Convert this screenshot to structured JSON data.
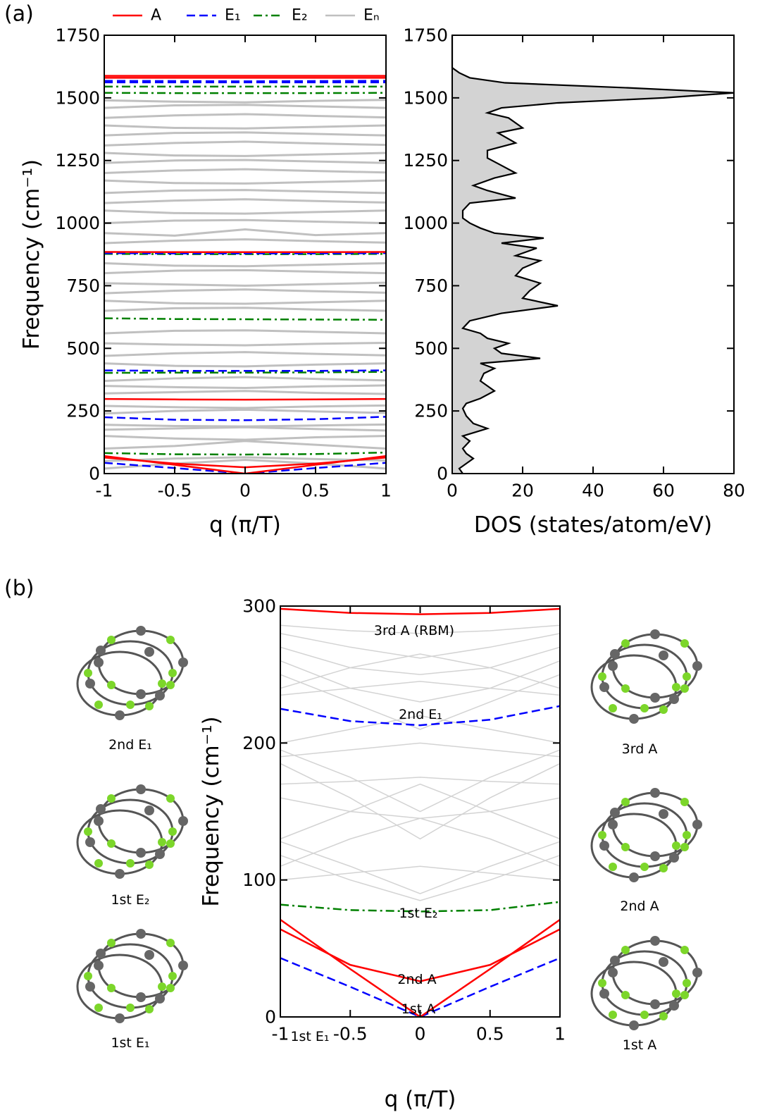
{
  "panel_labels": [
    "(a)",
    "(b)"
  ],
  "mode_images": [
    {
      "label": "2nd E₁",
      "color": "#0000ff"
    },
    {
      "label": "1st E₂",
      "color": "#008000"
    },
    {
      "label": "1st E₁",
      "color": "#0000ff"
    },
    {
      "label": "3rd A",
      "color": "#ff0000"
    },
    {
      "label": "2nd A",
      "color": "#ff0000"
    },
    {
      "label": "1st A",
      "color": "#ff0000"
    }
  ],
  "chart_data": [
    {
      "type": "dispersion",
      "xlabel": "q (π/T)",
      "ylabel": "Frequency (cm⁻¹)",
      "x": [
        -1,
        -0.5,
        0,
        0.5,
        1
      ],
      "xlim": [
        -1,
        1
      ],
      "xticks": [
        -1,
        -0.5,
        0,
        0.5,
        1
      ],
      "ylim": [
        0,
        1750
      ],
      "yticks": [
        0,
        250,
        500,
        750,
        1000,
        1250,
        1500,
        1750
      ],
      "legend": "top",
      "series": [
        {
          "name": "A",
          "color": "#ff0000",
          "dash": "solid",
          "branches": [
            [
              1588,
              1588,
              1588,
              1588,
              1588
            ],
            [
              1580,
              1580,
              1580,
              1580,
              1580
            ],
            [
              885,
              884,
              884,
              884,
              885
            ],
            [
              298,
              296,
              295,
              296,
              298
            ],
            [
              70,
              35,
              0,
              35,
              70
            ],
            [
              64,
              40,
              25,
              40,
              64
            ]
          ]
        },
        {
          "name": "E₁",
          "color": "#0000ff",
          "dash": "dashed",
          "branches": [
            [
              1568,
              1567,
              1566,
              1567,
              1568
            ],
            [
              1562,
              1562,
              1562,
              1562,
              1562
            ],
            [
              880,
              879,
              879,
              879,
              880
            ],
            [
              412,
              410,
              410,
              410,
              412
            ],
            [
              225,
              215,
              213,
              217,
              227
            ],
            [
              43,
              22,
              0,
              22,
              43
            ]
          ]
        },
        {
          "name": "E₂",
          "color": "#008000",
          "dash": "dashdot",
          "branches": [
            [
              1545,
              1545,
              1545,
              1545,
              1545
            ],
            [
              1520,
              1519,
              1519,
              1519,
              1520
            ],
            [
              877,
              876,
              876,
              876,
              877
            ],
            [
              620,
              617,
              616,
              615,
              614
            ],
            [
              402,
              403,
              403,
              404,
              406
            ],
            [
              82,
              77,
              76,
              78,
              84
            ]
          ]
        },
        {
          "name": "Eₙ",
          "color": "#c0c0c0",
          "dash": "solid",
          "branches": [
            [
              20,
              40,
              55,
              40,
              20
            ],
            [
              50,
              60,
              65,
              58,
              52
            ],
            [
              100,
              110,
              130,
              115,
              100
            ],
            [
              150,
              140,
              135,
              145,
              150
            ],
            [
              175,
              180,
              185,
              178,
              172
            ],
            [
              195,
              190,
              188,
              192,
              196
            ],
            [
              240,
              250,
              255,
              248,
              242
            ],
            [
              270,
              265,
              262,
              268,
              272
            ],
            [
              320,
              325,
              330,
              322,
              318
            ],
            [
              350,
              345,
              342,
              348,
              352
            ],
            [
              370,
              380,
              385,
              378,
              372
            ],
            [
              440,
              430,
              428,
              435,
              440
            ],
            [
              470,
              480,
              485,
              478,
              472
            ],
            [
              520,
              515,
              512,
              518,
              522
            ],
            [
              560,
              570,
              572,
              566,
              560
            ],
            [
              650,
              660,
              662,
              655,
              650
            ],
            [
              690,
              680,
              678,
              684,
              690
            ],
            [
              720,
              730,
              735,
              728,
              722
            ],
            [
              760,
              755,
              750,
              756,
              762
            ],
            [
              800,
              810,
              812,
              806,
              800
            ],
            [
              840,
              830,
              828,
              834,
              840
            ],
            [
              920,
              930,
              935,
              928,
              922
            ],
            [
              960,
              950,
              975,
              952,
              960
            ],
            [
              1000,
              1010,
              1012,
              1006,
              1000
            ],
            [
              1050,
              1040,
              1038,
              1044,
              1050
            ],
            [
              1080,
              1090,
              1095,
              1088,
              1082
            ],
            [
              1120,
              1130,
              1132,
              1126,
              1120
            ],
            [
              1170,
              1160,
              1158,
              1164,
              1170
            ],
            [
              1200,
              1210,
              1215,
              1208,
              1202
            ],
            [
              1240,
              1250,
              1252,
              1246,
              1240
            ],
            [
              1280,
              1270,
              1268,
              1274,
              1280
            ],
            [
              1310,
              1320,
              1325,
              1318,
              1312
            ],
            [
              1350,
              1360,
              1362,
              1356,
              1350
            ],
            [
              1390,
              1380,
              1378,
              1384,
              1390
            ],
            [
              1420,
              1430,
              1435,
              1428,
              1422
            ],
            [
              1460,
              1470,
              1472,
              1466,
              1460
            ],
            [
              1490,
              1485,
              1482,
              1488,
              1492
            ]
          ]
        }
      ]
    },
    {
      "type": "dos",
      "xlabel": "DOS (states/atom/eV)",
      "color": "#d3d3d3",
      "xlim": [
        0,
        80
      ],
      "xticks": [
        0,
        20,
        40,
        60,
        80
      ],
      "ylim": [
        0,
        1750
      ],
      "yticks": [
        0,
        250,
        500,
        750,
        1000,
        1250,
        1500,
        1750
      ],
      "frequencies": [
        0,
        20,
        40,
        60,
        80,
        100,
        130,
        150,
        180,
        200,
        230,
        260,
        280,
        300,
        330,
        350,
        370,
        400,
        420,
        440,
        460,
        480,
        500,
        520,
        540,
        560,
        580,
        610,
        640,
        670,
        700,
        730,
        760,
        790,
        820,
        850,
        870,
        900,
        920,
        940,
        960,
        980,
        1000,
        1020,
        1050,
        1080,
        1100,
        1130,
        1150,
        1180,
        1200,
        1230,
        1260,
        1290,
        1320,
        1360,
        1380,
        1420,
        1440,
        1460,
        1480,
        1500,
        1520,
        1540,
        1560,
        1580,
        1600,
        1620,
        1750
      ],
      "values": [
        3,
        2,
        4,
        6,
        4,
        3,
        5,
        3,
        10,
        6,
        4,
        3,
        4,
        8,
        12,
        10,
        8,
        9,
        12,
        8,
        25,
        14,
        12,
        16,
        10,
        8,
        3,
        5,
        14,
        30,
        20,
        22,
        25,
        18,
        20,
        25,
        18,
        24,
        14,
        26,
        12,
        8,
        5,
        3,
        3,
        5,
        18,
        10,
        6,
        12,
        18,
        14,
        10,
        10,
        18,
        13,
        20,
        16,
        10,
        14,
        30,
        60,
        80,
        50,
        15,
        5,
        2,
        0,
        0
      ]
    },
    {
      "type": "dispersion",
      "xlabel": "q (π/T)",
      "ylabel": "Frequency (cm⁻¹)",
      "x": [
        -1,
        -0.5,
        0,
        0.5,
        1
      ],
      "xlim": [
        -1,
        1
      ],
      "xticks": [
        -1,
        -0.5,
        0,
        0.5,
        1
      ],
      "ylim": [
        0,
        300
      ],
      "yticks": [
        0,
        100,
        200,
        300
      ],
      "annotations": [
        {
          "text": "3rd A (RBM)",
          "color": "#ff0000"
        },
        {
          "text": "2nd E₁",
          "color": "#0000ff"
        },
        {
          "text": "1st E₂",
          "color": "#008000"
        },
        {
          "text": "2nd A",
          "color": "#ff0000"
        },
        {
          "text": "1st A",
          "color": "#ff0000"
        },
        {
          "text": "1st E₁",
          "color": "#0000ff"
        }
      ],
      "series": [
        {
          "color": "#ff0000",
          "dash": "solid",
          "branches": [
            [
              298,
              295,
              294,
              295,
              298
            ],
            [
              71,
              35,
              0,
              35,
              71
            ],
            [
              64,
              38,
              26,
              38,
              64
            ]
          ]
        },
        {
          "color": "#0000ff",
          "dash": "dashed",
          "branches": [
            [
              225,
              216,
              213,
              217,
              227
            ],
            [
              43,
              22,
              0,
              22,
              43
            ]
          ]
        },
        {
          "color": "#008000",
          "dash": "dashdot",
          "branches": [
            [
              82,
              78,
              77,
              78,
              84
            ]
          ]
        },
        {
          "color": "#d3d3d3",
          "dash": "solid",
          "branches": [
            [
              128,
              110,
              90,
              110,
              128
            ],
            [
              118,
              100,
              85,
              100,
              118
            ],
            [
              185,
              160,
              130,
              160,
              185
            ],
            [
              195,
              175,
              150,
              175,
              195
            ],
            [
              250,
              230,
              210,
              230,
              250
            ],
            [
              260,
              240,
              230,
              240,
              260
            ],
            [
              280,
              270,
              262,
              270,
              280
            ],
            [
              270,
              255,
              250,
              255,
              270
            ],
            [
              240,
              255,
              265,
              255,
              240
            ],
            [
              200,
              210,
              220,
              210,
              200
            ],
            [
              190,
              195,
              200,
              195,
              190
            ],
            [
              130,
              150,
              170,
              150,
              130
            ],
            [
              110,
              130,
              145,
              130,
              110
            ],
            [
              100,
              105,
              110,
              105,
              100
            ],
            [
              170,
              172,
              175,
              172,
              170
            ],
            [
              286,
              282,
              280,
              282,
              286
            ],
            [
              235,
              240,
              245,
              240,
              235
            ],
            [
              160,
              150,
              145,
              150,
              160
            ]
          ]
        }
      ]
    }
  ]
}
